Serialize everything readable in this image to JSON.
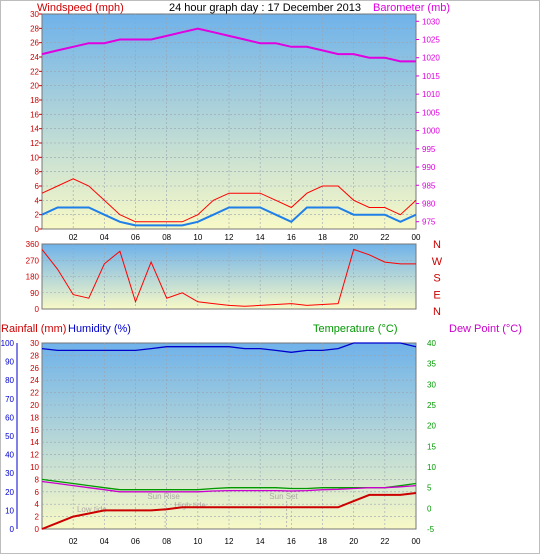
{
  "colors": {
    "wind": "#dd0000",
    "gust": "#ff0000",
    "avg_wind": "#1f7fe8",
    "barometer": "#e000e0",
    "direction": "#ff0000",
    "humidity": "#0000cc",
    "temperature": "#009900",
    "dew_point": "#cc00cc",
    "rainfall": "#cc0000",
    "grid": "#9aa4b0",
    "sky_top": "#6fb2ea",
    "sky_bottom": "#f8f9c6"
  },
  "chart_data": [
    {
      "type": "line",
      "title": "24 hour graph day : 17 December 2013",
      "ylabel_left": "Windspeed (mph)",
      "ylabel_right": "Barometer (mb)",
      "x_ticks": [
        "02",
        "04",
        "06",
        "08",
        "10",
        "12",
        "14",
        "16",
        "18",
        "20",
        "22",
        "00"
      ],
      "left_ticks": [
        "0",
        "2",
        "4",
        "6",
        "8",
        "10",
        "12",
        "14",
        "16",
        "18",
        "20",
        "22",
        "24",
        "26",
        "28",
        "30"
      ],
      "right_ticks": [
        "975",
        "980",
        "985",
        "990",
        "995",
        "1000",
        "1005",
        "1010",
        "1015",
        "1020",
        "1025",
        "1030"
      ],
      "ylim_left": [
        0,
        30
      ],
      "ylim_right": [
        973,
        1032
      ],
      "x_hours": [
        0,
        1,
        2,
        3,
        4,
        5,
        6,
        7,
        8,
        9,
        10,
        11,
        12,
        13,
        14,
        15,
        16,
        17,
        18,
        19,
        20,
        21,
        22,
        23,
        24
      ],
      "series": [
        {
          "name": "wind_gust",
          "axis": "left",
          "values": [
            5,
            6,
            7,
            6,
            4,
            2,
            1,
            1,
            1,
            1,
            2,
            4,
            5,
            5,
            5,
            4,
            3,
            5,
            6,
            6,
            4,
            3,
            3,
            2,
            4
          ]
        },
        {
          "name": "wind_avg",
          "axis": "left",
          "values": [
            2,
            3,
            3,
            3,
            2,
            1,
            0.5,
            0.5,
            0.5,
            0.5,
            1,
            2,
            3,
            3,
            3,
            2,
            1,
            3,
            3,
            3,
            2,
            2,
            2,
            1,
            2
          ]
        },
        {
          "name": "barometer",
          "axis": "right",
          "values": [
            1021,
            1022,
            1023,
            1024,
            1024,
            1025,
            1025,
            1025,
            1026,
            1027,
            1028,
            1027,
            1026,
            1025,
            1024,
            1024,
            1023,
            1023,
            1022,
            1021,
            1021,
            1020,
            1020,
            1019,
            1019
          ]
        }
      ]
    },
    {
      "type": "line",
      "left_ticks": [
        "0",
        "90",
        "180",
        "270",
        "360"
      ],
      "right_labels": [
        "N",
        "W",
        "S",
        "E",
        "N"
      ],
      "ylim": [
        0,
        360
      ],
      "series": [
        {
          "name": "direction",
          "values": [
            330,
            220,
            80,
            60,
            250,
            320,
            40,
            260,
            60,
            90,
            40,
            30,
            20,
            15,
            20,
            25,
            30,
            20,
            25,
            30,
            330,
            300,
            260,
            250,
            250
          ]
        }
      ]
    },
    {
      "type": "line",
      "ylabel_left_1": "Rainfall (mm)",
      "ylabel_left_2": "Humidity (%)",
      "ylabel_right_1": "Temperature (°C)",
      "ylabel_right_2": "Dew Point (°C)",
      "humidity_ticks": [
        "0",
        "10",
        "20",
        "30",
        "40",
        "50",
        "60",
        "70",
        "80",
        "90",
        "100"
      ],
      "rain_ticks": [
        "0",
        "2",
        "4",
        "6",
        "8",
        "10",
        "12",
        "14",
        "16",
        "18",
        "20",
        "22",
        "24",
        "26",
        "28",
        "30"
      ],
      "temp_ticks": [
        "-5",
        "0",
        "5",
        "10",
        "15",
        "20",
        "25",
        "30",
        "35",
        "40"
      ],
      "annotations": [
        "Sun Rise",
        "Sun Set",
        "Low tide",
        "High tide"
      ],
      "series": [
        {
          "name": "humidity",
          "axis": "humidity",
          "values": [
            97,
            96,
            96,
            96,
            96,
            96,
            96,
            97,
            98,
            98,
            98,
            98,
            98,
            97,
            97,
            96,
            95,
            96,
            96,
            97,
            100,
            100,
            100,
            100,
            98
          ]
        },
        {
          "name": "temperature",
          "axis": "temp",
          "values": [
            7,
            6.5,
            6,
            5.5,
            5,
            4.5,
            4.5,
            4.5,
            4.5,
            4.5,
            4.5,
            4.8,
            5,
            5,
            5,
            5,
            4.8,
            4.8,
            5,
            5,
            5,
            5,
            5,
            5.5,
            6
          ]
        },
        {
          "name": "dew_point",
          "axis": "temp",
          "values": [
            6.5,
            6,
            5.5,
            5,
            4.5,
            4,
            4,
            4,
            4,
            4,
            4,
            4.2,
            4.3,
            4.3,
            4.3,
            4.3,
            4.2,
            4.3,
            4.5,
            4.6,
            4.8,
            5,
            5,
            5.2,
            5.5
          ]
        },
        {
          "name": "rainfall",
          "axis": "rain",
          "values": [
            0,
            1,
            2,
            2.5,
            3,
            3,
            3,
            3,
            3.2,
            3.5,
            3.5,
            3.5,
            3.5,
            3.5,
            3.5,
            3.5,
            3.5,
            3.5,
            3.5,
            3.5,
            4.5,
            5.5,
            5.5,
            5.5,
            5.8
          ]
        }
      ]
    }
  ]
}
